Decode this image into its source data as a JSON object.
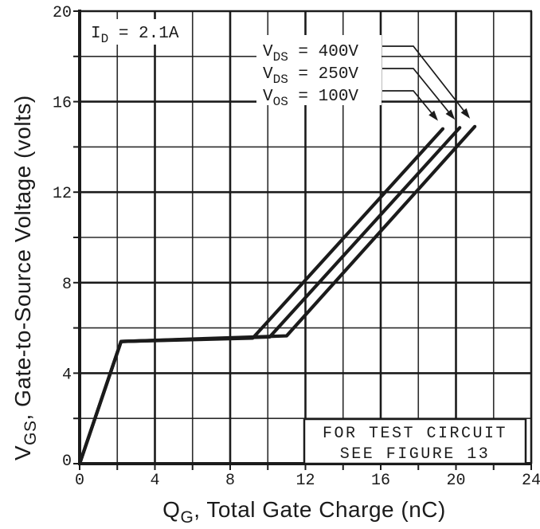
{
  "colors": {
    "ink": "#1b1b1b",
    "bg": "#ffffff"
  },
  "annotation": {
    "sym": "I",
    "sub": "D",
    "eq": " = 2.1A"
  },
  "legend": {
    "entries": [
      {
        "sym": "V",
        "sub": "DS",
        "eq": " = 400V"
      },
      {
        "sym": "V",
        "sub": "DS",
        "eq": " = 250V"
      },
      {
        "sym": "V",
        "sub": "OS",
        "eq": " = 100V"
      }
    ]
  },
  "note": {
    "line1": "FOR TEST CIRCUIT",
    "line2": "SEE FIGURE 13"
  },
  "x_axis": {
    "sym": "Q",
    "sub": "G",
    "rest": ", Total Gate Charge (nC)"
  },
  "y_axis": {
    "sym": "V",
    "sub": "GS",
    "rest": ", Gate-to-Source Voltage (volts)"
  },
  "chart_data": {
    "type": "line",
    "title": "",
    "xlabel": "QG, Total Gate Charge (nC)",
    "ylabel": "VGS, Gate-to-Source Voltage (volts)",
    "xlim": [
      0,
      24
    ],
    "ylim": [
      0,
      20
    ],
    "x_ticks": [
      0,
      4,
      8,
      12,
      16,
      20,
      24
    ],
    "y_ticks": [
      0,
      4,
      8,
      12,
      16,
      20
    ],
    "minor_step_x": 2,
    "minor_step_y": 2,
    "grid": "on",
    "legend_position": "inside-top, callout arrows to curve tips",
    "annotations": [
      "ID = 2.1A",
      "FOR TEST CIRCUIT SEE FIGURE 13"
    ],
    "series": [
      {
        "name": "VDS = 400V",
        "points": [
          [
            0,
            0
          ],
          [
            2.2,
            5.4
          ],
          [
            11.0,
            5.65
          ],
          [
            21.0,
            14.9
          ]
        ]
      },
      {
        "name": "VDS = 250V",
        "points": [
          [
            0,
            0
          ],
          [
            2.2,
            5.4
          ],
          [
            10.1,
            5.6
          ],
          [
            20.2,
            14.85
          ]
        ]
      },
      {
        "name": "VOS = 100V",
        "points": [
          [
            0,
            0
          ],
          [
            2.2,
            5.4
          ],
          [
            9.2,
            5.55
          ],
          [
            19.3,
            14.8
          ]
        ]
      }
    ]
  }
}
